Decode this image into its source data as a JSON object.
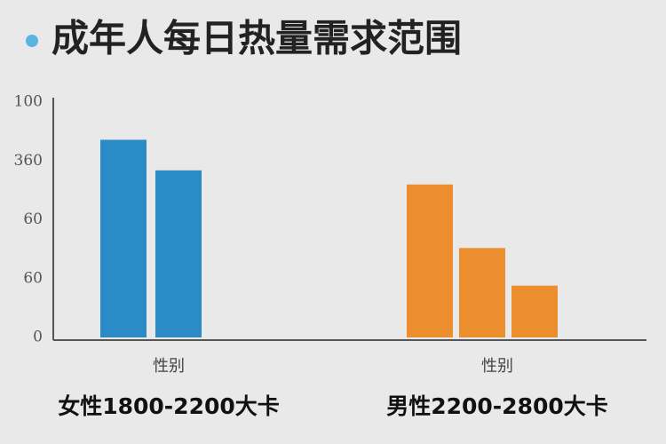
{
  "chart_data": {
    "type": "bar",
    "title": "成年人每日热量需求范围",
    "ylim": [
      0,
      100
    ],
    "yticks": [
      100,
      {
        "value": 75,
        "label": "360"
      },
      {
        "value": 50,
        "label": "60"
      },
      {
        "value": 25,
        "label": "60"
      },
      0
    ],
    "groups": [
      {
        "axis_label": "性别",
        "name": "女性1800-2200大卡",
        "color": "#2b8bc6",
        "values": [
          84,
          71
        ]
      },
      {
        "axis_label": "性别",
        "name": "男性2200-2800大卡",
        "color": "#ec8e2e",
        "values": [
          65,
          38,
          22
        ]
      }
    ]
  }
}
